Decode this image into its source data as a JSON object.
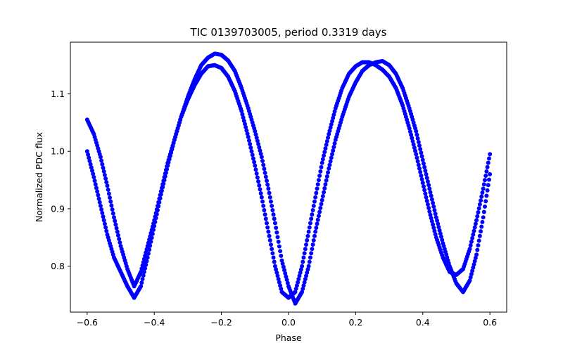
{
  "chart_data": {
    "type": "scatter",
    "title": "TIC 0139703005, period 0.3319 days",
    "xlabel": "Phase",
    "ylabel": "Normalized PDC flux",
    "xlim": [
      -0.65,
      0.65
    ],
    "ylim": [
      0.72,
      1.19
    ],
    "xticks": [
      -0.6,
      -0.4,
      -0.2,
      0.0,
      0.2,
      0.4,
      0.6
    ],
    "xtick_labels": [
      "−0.6",
      "−0.4",
      "−0.2",
      "0.0",
      "0.2",
      "0.4",
      "0.6"
    ],
    "yticks": [
      0.8,
      0.9,
      1.0,
      1.1
    ],
    "ytick_labels": [
      "0.8",
      "0.9",
      "1.0",
      "1.1"
    ],
    "grid": false,
    "series": [
      {
        "name": "branch-a",
        "color": "#0000ff",
        "x": [
          -0.6,
          -0.58,
          -0.56,
          -0.54,
          -0.52,
          -0.5,
          -0.48,
          -0.46,
          -0.44,
          -0.42,
          -0.4,
          -0.38,
          -0.36,
          -0.34,
          -0.32,
          -0.3,
          -0.28,
          -0.26,
          -0.24,
          -0.22,
          -0.2,
          -0.18,
          -0.16,
          -0.14,
          -0.12,
          -0.1,
          -0.08,
          -0.06,
          -0.04,
          -0.02,
          0.0,
          0.02,
          0.04,
          0.06,
          0.08,
          0.1,
          0.12,
          0.14,
          0.16,
          0.18,
          0.2,
          0.22,
          0.24,
          0.26,
          0.28,
          0.3,
          0.32,
          0.34,
          0.36,
          0.38,
          0.4,
          0.42,
          0.44,
          0.46,
          0.48,
          0.5,
          0.52,
          0.54,
          0.56,
          0.58,
          0.6
        ],
        "y": [
          1.055,
          1.03,
          0.99,
          0.94,
          0.885,
          0.835,
          0.795,
          0.765,
          0.79,
          0.835,
          0.88,
          0.93,
          0.98,
          1.02,
          1.06,
          1.095,
          1.125,
          1.15,
          1.163,
          1.17,
          1.168,
          1.158,
          1.14,
          1.11,
          1.075,
          1.035,
          0.99,
          0.935,
          0.875,
          0.81,
          0.765,
          0.735,
          0.755,
          0.8,
          0.86,
          0.915,
          0.97,
          1.02,
          1.06,
          1.095,
          1.12,
          1.14,
          1.15,
          1.155,
          1.157,
          1.15,
          1.135,
          1.11,
          1.075,
          1.035,
          0.985,
          0.935,
          0.885,
          0.84,
          0.8,
          0.77,
          0.755,
          0.775,
          0.82,
          0.885,
          0.96
        ]
      },
      {
        "name": "branch-b",
        "color": "#0000ff",
        "x": [
          -0.6,
          -0.58,
          -0.56,
          -0.54,
          -0.52,
          -0.5,
          -0.48,
          -0.46,
          -0.44,
          -0.42,
          -0.4,
          -0.38,
          -0.36,
          -0.34,
          -0.32,
          -0.3,
          -0.28,
          -0.26,
          -0.24,
          -0.22,
          -0.2,
          -0.18,
          -0.16,
          -0.14,
          -0.12,
          -0.1,
          -0.08,
          -0.06,
          -0.04,
          -0.02,
          0.0,
          0.02,
          0.04,
          0.06,
          0.08,
          0.1,
          0.12,
          0.14,
          0.16,
          0.18,
          0.2,
          0.22,
          0.24,
          0.26,
          0.28,
          0.3,
          0.32,
          0.34,
          0.36,
          0.38,
          0.4,
          0.42,
          0.44,
          0.46,
          0.48,
          0.5,
          0.52,
          0.54,
          0.56,
          0.58,
          0.6
        ],
        "y": [
          1.0,
          0.955,
          0.905,
          0.855,
          0.815,
          0.79,
          0.765,
          0.745,
          0.765,
          0.815,
          0.87,
          0.925,
          0.975,
          1.02,
          1.06,
          1.09,
          1.115,
          1.135,
          1.148,
          1.15,
          1.145,
          1.13,
          1.105,
          1.07,
          1.025,
          0.975,
          0.92,
          0.86,
          0.8,
          0.755,
          0.745,
          0.755,
          0.8,
          0.86,
          0.92,
          0.98,
          1.03,
          1.075,
          1.11,
          1.135,
          1.148,
          1.155,
          1.155,
          1.15,
          1.142,
          1.13,
          1.11,
          1.08,
          1.04,
          0.995,
          0.945,
          0.895,
          0.85,
          0.815,
          0.79,
          0.785,
          0.795,
          0.83,
          0.88,
          0.935,
          0.995
        ]
      }
    ]
  }
}
